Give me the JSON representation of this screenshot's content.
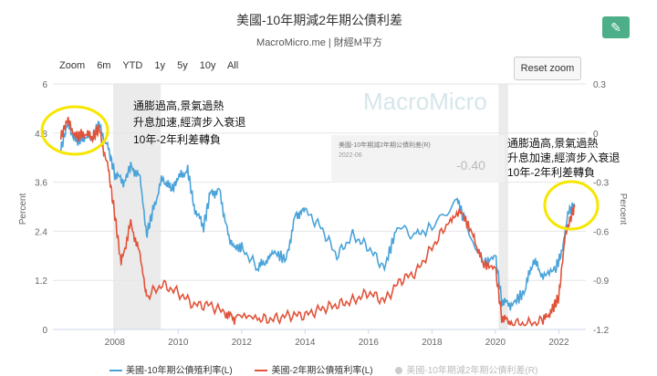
{
  "header": {
    "title": "美國-10年期減2年期公債利差",
    "subtitle": "MacroMicro.me | 財經M平方",
    "edit_icon": "pencil-icon"
  },
  "zoom": {
    "options": [
      "Zoom",
      "6m",
      "YTD",
      "1y",
      "5y",
      "10y",
      "All"
    ],
    "reset_label": "Reset zoom"
  },
  "watermark": "MacroMicro",
  "tooltip": {
    "series": "美國-10年期減2年期公債利差(R)",
    "date": "2022-06",
    "value": "-0.40"
  },
  "annotations": {
    "left": [
      "通膨過高,景氣過熱",
      "升息加速,經濟步入衰退",
      "10年-2年利差轉負"
    ],
    "right": [
      "通膨過高,景氣過熱",
      "升息加速,經濟步入衰退",
      "10年-2年利差轉負"
    ]
  },
  "colors": {
    "ten_year": "#4aa3d9",
    "two_year": "#e0533a",
    "spread": "#cccccc",
    "highlight": "#f7e600",
    "recession": "#ebebeb"
  },
  "chart_data": {
    "type": "line",
    "x_ticks": [
      "2008",
      "2010",
      "2012",
      "2014",
      "2016",
      "2018",
      "2020",
      "2022"
    ],
    "y_left": {
      "label": "Percent",
      "ticks": [
        "0",
        "1.2",
        "2.4",
        "3.6",
        "4.8",
        "6"
      ],
      "range": [
        0,
        6
      ]
    },
    "y_right": {
      "label": "Percent",
      "ticks": [
        "-1.2",
        "-0.9",
        "-0.6",
        "-0.3",
        "0",
        "0.3"
      ],
      "range": [
        -1.2,
        0.3
      ]
    },
    "recession_shading": [
      [
        2007.95,
        2009.45
      ],
      [
        2020.1,
        2020.4
      ]
    ],
    "series": [
      {
        "name": "美國-10年期公債殖利率(L)",
        "color": "#4aa3d9",
        "points": [
          [
            2006.3,
            4.4
          ],
          [
            2006.5,
            5.0
          ],
          [
            2006.8,
            4.6
          ],
          [
            2007.0,
            4.7
          ],
          [
            2007.3,
            4.7
          ],
          [
            2007.5,
            5.0
          ],
          [
            2007.8,
            4.4
          ],
          [
            2008.0,
            3.8
          ],
          [
            2008.3,
            3.6
          ],
          [
            2008.5,
            4.0
          ],
          [
            2008.8,
            3.7
          ],
          [
            2009.0,
            2.3
          ],
          [
            2009.2,
            2.9
          ],
          [
            2009.5,
            3.7
          ],
          [
            2009.8,
            3.4
          ],
          [
            2010.0,
            3.7
          ],
          [
            2010.3,
            3.9
          ],
          [
            2010.5,
            3.0
          ],
          [
            2010.8,
            2.5
          ],
          [
            2011.0,
            3.3
          ],
          [
            2011.3,
            3.4
          ],
          [
            2011.6,
            2.2
          ],
          [
            2011.8,
            2.0
          ],
          [
            2012.0,
            2.0
          ],
          [
            2012.5,
            1.5
          ],
          [
            2012.8,
            1.7
          ],
          [
            2013.0,
            1.9
          ],
          [
            2013.4,
            1.7
          ],
          [
            2013.7,
            2.8
          ],
          [
            2014.0,
            2.9
          ],
          [
            2014.5,
            2.5
          ],
          [
            2015.0,
            1.8
          ],
          [
            2015.5,
            2.3
          ],
          [
            2016.0,
            2.0
          ],
          [
            2016.5,
            1.5
          ],
          [
            2016.9,
            2.5
          ],
          [
            2017.5,
            2.3
          ],
          [
            2018.0,
            2.5
          ],
          [
            2018.8,
            3.2
          ],
          [
            2019.0,
            2.7
          ],
          [
            2019.6,
            1.6
          ],
          [
            2020.0,
            1.8
          ],
          [
            2020.2,
            0.7
          ],
          [
            2020.5,
            0.6
          ],
          [
            2020.9,
            0.9
          ],
          [
            2021.2,
            1.7
          ],
          [
            2021.5,
            1.3
          ],
          [
            2021.9,
            1.5
          ],
          [
            2022.1,
            1.9
          ],
          [
            2022.3,
            2.9
          ],
          [
            2022.5,
            3.0
          ]
        ]
      },
      {
        "name": "美國-2年期公債殖利率(L)",
        "color": "#e0533a",
        "points": [
          [
            2006.3,
            4.7
          ],
          [
            2006.5,
            5.1
          ],
          [
            2006.8,
            4.7
          ],
          [
            2007.0,
            4.8
          ],
          [
            2007.3,
            4.7
          ],
          [
            2007.5,
            4.9
          ],
          [
            2007.8,
            3.9
          ],
          [
            2008.0,
            2.8
          ],
          [
            2008.2,
            1.6
          ],
          [
            2008.5,
            2.6
          ],
          [
            2008.8,
            1.8
          ],
          [
            2009.0,
            0.8
          ],
          [
            2009.5,
            1.1
          ],
          [
            2010.0,
            0.9
          ],
          [
            2010.5,
            0.6
          ],
          [
            2011.0,
            0.6
          ],
          [
            2011.5,
            0.4
          ],
          [
            2011.8,
            0.25
          ],
          [
            2012.5,
            0.25
          ],
          [
            2013.0,
            0.25
          ],
          [
            2013.5,
            0.35
          ],
          [
            2014.0,
            0.35
          ],
          [
            2014.5,
            0.5
          ],
          [
            2015.0,
            0.6
          ],
          [
            2015.5,
            0.7
          ],
          [
            2016.0,
            0.9
          ],
          [
            2016.5,
            0.7
          ],
          [
            2017.0,
            1.2
          ],
          [
            2017.5,
            1.4
          ],
          [
            2018.0,
            2.0
          ],
          [
            2018.5,
            2.6
          ],
          [
            2018.9,
            2.9
          ],
          [
            2019.3,
            2.3
          ],
          [
            2019.6,
            1.6
          ],
          [
            2020.0,
            1.5
          ],
          [
            2020.2,
            0.3
          ],
          [
            2020.5,
            0.15
          ],
          [
            2021.0,
            0.13
          ],
          [
            2021.5,
            0.2
          ],
          [
            2021.8,
            0.5
          ],
          [
            2022.0,
            0.8
          ],
          [
            2022.2,
            2.3
          ],
          [
            2022.4,
            2.8
          ],
          [
            2022.5,
            3.0
          ]
        ]
      }
    ]
  },
  "legend": [
    {
      "label": "美國-10年期公債殖利率(L)",
      "color": "#4aa3d9"
    },
    {
      "label": "美國-2年期公債殖利率(L)",
      "color": "#e0533a"
    },
    {
      "label": "美國-10年期減2年期公債利差(R)",
      "color": "#cccccc"
    }
  ]
}
